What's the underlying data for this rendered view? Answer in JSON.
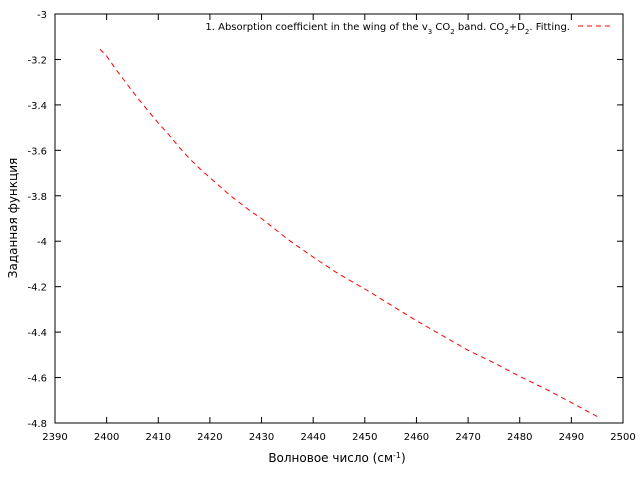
{
  "chart_data": {
    "type": "line",
    "xlabel": "Волновое число (см",
    "xlabel_sup": "-1",
    "xlabel_end": ")",
    "ylabel": "Заданная функция",
    "xlim": [
      2390,
      2500
    ],
    "ylim": [
      -4.8,
      -3.0
    ],
    "xticks": [
      2390,
      2400,
      2410,
      2420,
      2430,
      2440,
      2450,
      2460,
      2470,
      2480,
      2490,
      2500
    ],
    "yticks": [
      -3,
      -3.2,
      -3.4,
      -3.6,
      -3.8,
      -4,
      -4.2,
      -4.4,
      -4.6,
      -4.8
    ],
    "grid": false,
    "legend_position": "top-right",
    "series": [
      {
        "legend": {
          "p1": "1. Absorption coefficient in the wing of the v",
          "s1": "3",
          "p2": " CO",
          "s2": "2",
          "p3": " band. CO",
          "s3": "2",
          "p4": "+D",
          "s4": "2",
          "p5": ". Fitting."
        },
        "color": "#ff0000",
        "dash": "dashed",
        "x": [
          2398.7,
          2400,
          2402,
          2404,
          2406,
          2408,
          2410,
          2412,
          2414,
          2416,
          2418,
          2420,
          2422,
          2424,
          2426,
          2428,
          2430,
          2435,
          2440,
          2445,
          2450,
          2455,
          2460,
          2465,
          2470,
          2475,
          2480,
          2485,
          2490,
          2495.3
        ],
        "y": [
          -3.155,
          -3.185,
          -3.25,
          -3.31,
          -3.37,
          -3.425,
          -3.48,
          -3.53,
          -3.585,
          -3.635,
          -3.68,
          -3.72,
          -3.76,
          -3.8,
          -3.835,
          -3.87,
          -3.9,
          -3.99,
          -4.07,
          -4.145,
          -4.21,
          -4.28,
          -4.35,
          -4.415,
          -4.48,
          -4.535,
          -4.595,
          -4.65,
          -4.71,
          -4.775
        ]
      }
    ]
  }
}
